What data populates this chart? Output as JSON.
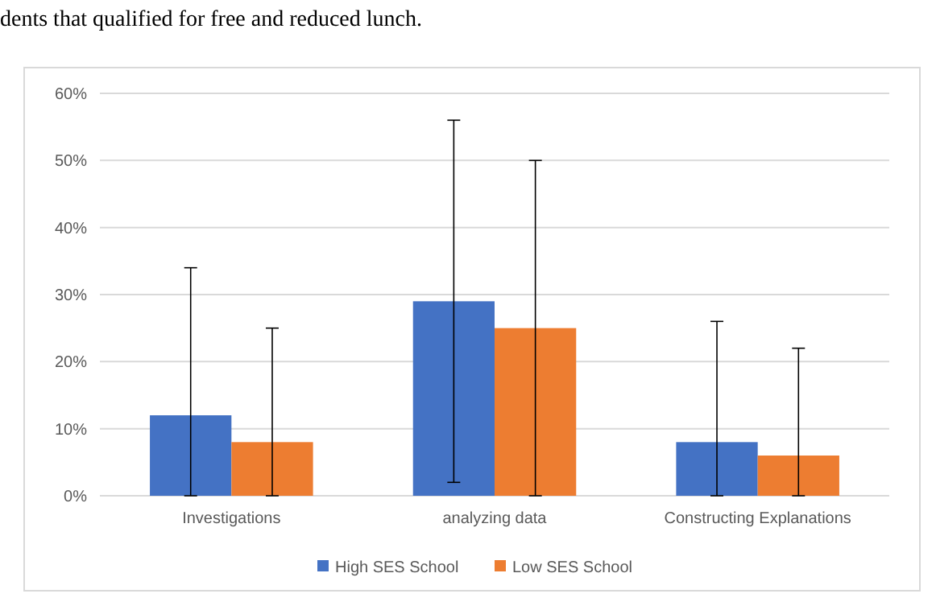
{
  "chart_data": {
    "type": "bar",
    "annotations": [
      "dents that qualified for free and reduced lunch."
    ],
    "categories": [
      "Investigations",
      "analyzing data",
      "Constructing Explanations"
    ],
    "series": [
      {
        "name": "High SES School",
        "color": "#4472c4",
        "values": [
          12,
          29,
          8
        ],
        "errors": [
          [
            0,
            34
          ],
          [
            2,
            56
          ],
          [
            0,
            26
          ]
        ]
      },
      {
        "name": "Low SES School",
        "color": "#ed7d31",
        "values": [
          8,
          25,
          6
        ],
        "errors": [
          [
            0,
            25
          ],
          [
            0,
            50
          ],
          [
            0,
            22
          ]
        ]
      }
    ],
    "ylim": [
      0,
      60
    ],
    "yticks": [
      {
        "value": 0,
        "label": "0%"
      },
      {
        "value": 10,
        "label": "10%"
      },
      {
        "value": 20,
        "label": "20%"
      },
      {
        "value": 30,
        "label": "30%"
      },
      {
        "value": 40,
        "label": "40%"
      },
      {
        "value": 50,
        "label": "50%"
      },
      {
        "value": 60,
        "label": "60%"
      }
    ],
    "grid": true,
    "legend": "bottom"
  }
}
